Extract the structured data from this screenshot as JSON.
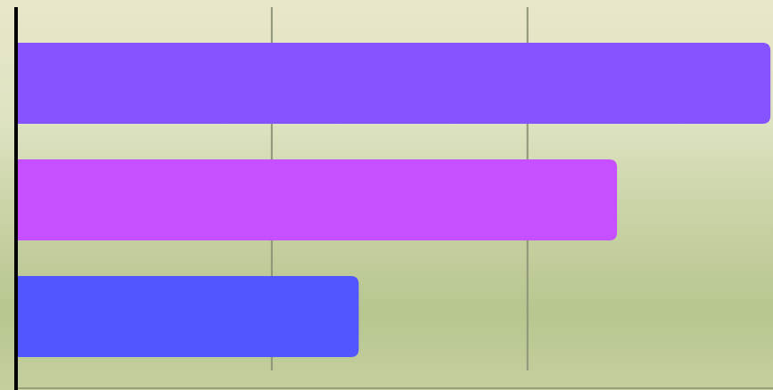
{
  "chart_data": {
    "type": "barh",
    "categories": [
      null,
      null,
      null
    ],
    "series": [
      {
        "values": [
          2.95,
          2.35,
          1.34
        ],
        "colors": [
          "#8752ff",
          "#c64fff",
          "#5157ff"
        ]
      }
    ],
    "xlim": [
      0,
      2.96
    ],
    "xticks": [
      1,
      2
    ],
    "grid": true
  }
}
